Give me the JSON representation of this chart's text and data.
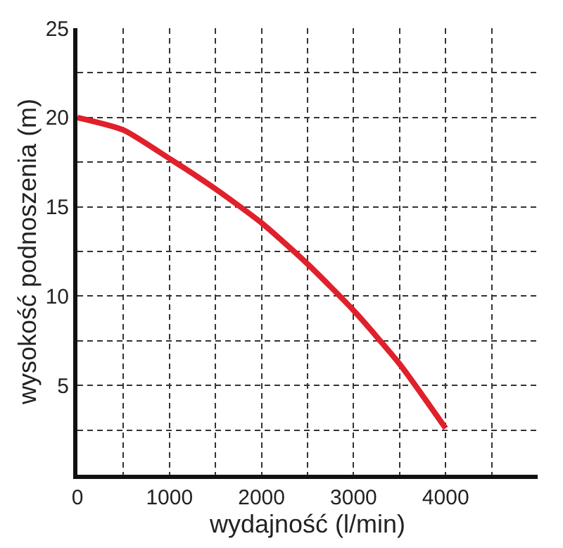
{
  "chart_data": {
    "type": "line",
    "xlabel": "wydajność (l/min)",
    "ylabel": "wysokość podnoszenia (m)",
    "x": [
      0,
      500,
      1000,
      1500,
      2000,
      2500,
      3000,
      3500,
      4000
    ],
    "series": [
      {
        "color": "#e0202a",
        "values": [
          20,
          19.3,
          17.7,
          16.0,
          14.1,
          11.8,
          9.2,
          6.2,
          2.6
        ]
      }
    ],
    "xlim": [
      0,
      5000
    ],
    "ylim": [
      0,
      25
    ],
    "xticks": [
      0,
      {
        "value": 500,
        "label": null
      },
      1000,
      {
        "value": 1500,
        "label": null
      },
      2000,
      {
        "value": 2500,
        "label": null
      },
      3000,
      {
        "value": 3500,
        "label": null
      },
      4000,
      {
        "value": 4500,
        "label": null
      }
    ],
    "yticks": [
      {
        "value": 0,
        "label": null
      },
      {
        "value": 2.5,
        "label": null
      },
      5,
      {
        "value": 7.5,
        "label": null
      },
      10,
      {
        "value": 12.5,
        "label": null
      },
      15,
      {
        "value": 17.5,
        "label": null
      },
      20,
      {
        "value": 22.5,
        "label": null
      },
      25
    ],
    "grid": true,
    "marker": "none",
    "line_style": "solid"
  }
}
